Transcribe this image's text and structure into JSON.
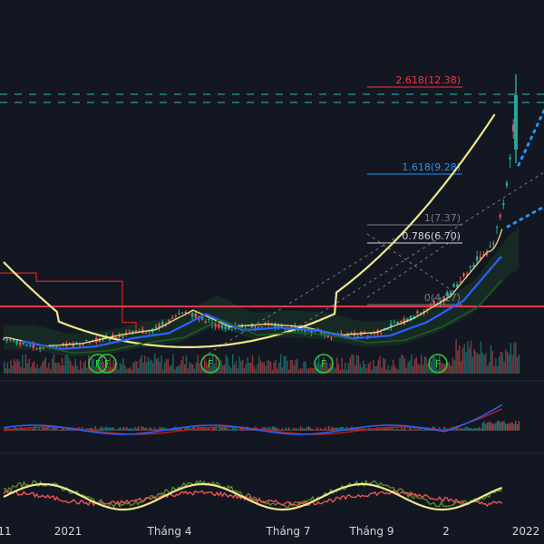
{
  "chart_data": {
    "type": "line",
    "main": {
      "price": [
        {
          "date": "2020-11",
          "close": 3.9
        },
        {
          "date": "2020-12",
          "close": 3.6
        },
        {
          "date": "2021-01",
          "close": 3.7
        },
        {
          "date": "2021-02",
          "close": 4.0
        },
        {
          "date": "2021-03",
          "close": 4.2
        },
        {
          "date": "2021-04",
          "close": 4.9
        },
        {
          "date": "2021-05",
          "close": 4.3
        },
        {
          "date": "2021-06",
          "close": 4.4
        },
        {
          "date": "2021-07",
          "close": 4.3
        },
        {
          "date": "2021-08",
          "close": 4.0
        },
        {
          "date": "2021-09",
          "close": 4.1
        },
        {
          "date": "2021-10",
          "close": 4.6
        },
        {
          "date": "2021-11",
          "close": 5.4
        },
        {
          "date": "2021-12",
          "close": 7.0
        },
        {
          "date": "2022-01",
          "close": 13.2
        }
      ],
      "fib_levels": [
        {
          "label": "2.618(12.38)",
          "value": 12.38,
          "color": "#f23645"
        },
        {
          "label": "1.618(9.28)",
          "value": 9.28,
          "color": "#2196f3"
        },
        {
          "label": "1(7.37)",
          "value": 7.37,
          "color": "#787b86"
        },
        {
          "label": "0.786(6.70)",
          "value": 6.7,
          "color": "#d1d4dc"
        },
        {
          "label": "0(4.27)",
          "value": 4.27,
          "color": "#787b86"
        }
      ],
      "support_line": {
        "value": 4.1,
        "color": "#f23645"
      },
      "dashed_levels": [
        {
          "value": 12.8,
          "color": "#26a69a"
        },
        {
          "value": 12.4,
          "color": "#26a69a"
        }
      ],
      "markers": [
        {
          "label": "F",
          "date": "2021-01"
        },
        {
          "label": "F",
          "date": "2021-01"
        },
        {
          "label": "F",
          "date": "2021-04"
        },
        {
          "label": "F",
          "date": "2021-08"
        },
        {
          "label": "F",
          "date": "2021-11"
        }
      ]
    },
    "x_ticks": [
      "11",
      "2021",
      "Tháng 4",
      "Tháng 7",
      "Tháng 9",
      "2",
      "2022"
    ],
    "colors": {
      "background": "#131722",
      "candle_up": "#26a69a",
      "candle_down": "#ef5350",
      "curve": "#f0e68c",
      "ma_blue": "#2962ff",
      "ma_red": "#b22222"
    },
    "grid": false
  }
}
